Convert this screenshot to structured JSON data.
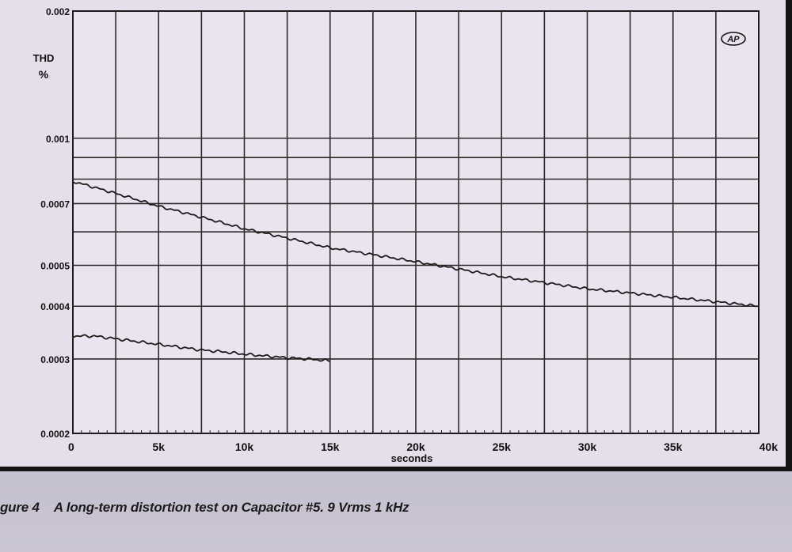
{
  "chart_data": {
    "type": "line",
    "title": "",
    "xlabel": "seconds",
    "ylabel": "THD\n%",
    "ylabel_line1": "THD",
    "ylabel_line2": "%",
    "y_scale": "log",
    "xlim": [
      0,
      40000
    ],
    "ylim": [
      0.0002,
      0.002
    ],
    "grid": true,
    "x_ticks": [
      {
        "value": 0,
        "label": "0"
      },
      {
        "value": 5000,
        "label": "5k"
      },
      {
        "value": 10000,
        "label": "10k"
      },
      {
        "value": 15000,
        "label": "15k"
      },
      {
        "value": 20000,
        "label": "20k"
      },
      {
        "value": 25000,
        "label": "25k"
      },
      {
        "value": 30000,
        "label": "30k"
      },
      {
        "value": 35000,
        "label": "35k"
      },
      {
        "value": 40000,
        "label": "40k"
      }
    ],
    "y_ticks": [
      {
        "value": 0.0002,
        "label": "0.0002"
      },
      {
        "value": 0.0003,
        "label": "0.0003"
      },
      {
        "value": 0.0004,
        "label": "0.0004"
      },
      {
        "value": 0.0005,
        "label": "0.0005"
      },
      {
        "value": 0.0007,
        "label": "0.0007"
      },
      {
        "value": 0.001,
        "label": "0.001"
      },
      {
        "value": 0.002,
        "label": "0.002"
      }
    ],
    "y_gridlines": [
      0.0002,
      0.0003,
      0.0004,
      0.0005,
      0.0006,
      0.0007,
      0.0008,
      0.0009,
      0.001,
      0.002
    ],
    "series": [
      {
        "x": [
          0,
          2500,
          5000,
          7500,
          10000,
          12500,
          15000,
          17500,
          20000,
          22500,
          25000,
          27500,
          30000,
          32500,
          35000,
          37500,
          40000
        ],
        "y": [
          0.00079,
          0.00074,
          0.00069,
          0.00065,
          0.00061,
          0.00058,
          0.00055,
          0.00053,
          0.00051,
          0.00049,
          0.00047,
          0.000455,
          0.00044,
          0.00043,
          0.00042,
          0.00041,
          0.0004
        ]
      },
      {
        "x": [
          0,
          1250,
          2500,
          3750,
          5000,
          6250,
          7500,
          8750,
          10000,
          11250,
          12500,
          13750,
          15000
        ],
        "y": [
          0.00034,
          0.00034,
          0.000335,
          0.00033,
          0.000325,
          0.00032,
          0.000315,
          0.000312,
          0.000308,
          0.000305,
          0.000302,
          0.0003,
          0.000297
        ]
      }
    ]
  },
  "caption": {
    "figure_label": "gure 4",
    "text": "A long-term distortion test on Capacitor #5. 9 Vrms 1 kHz"
  },
  "logo": {
    "icon": "ap-logo-icon"
  }
}
